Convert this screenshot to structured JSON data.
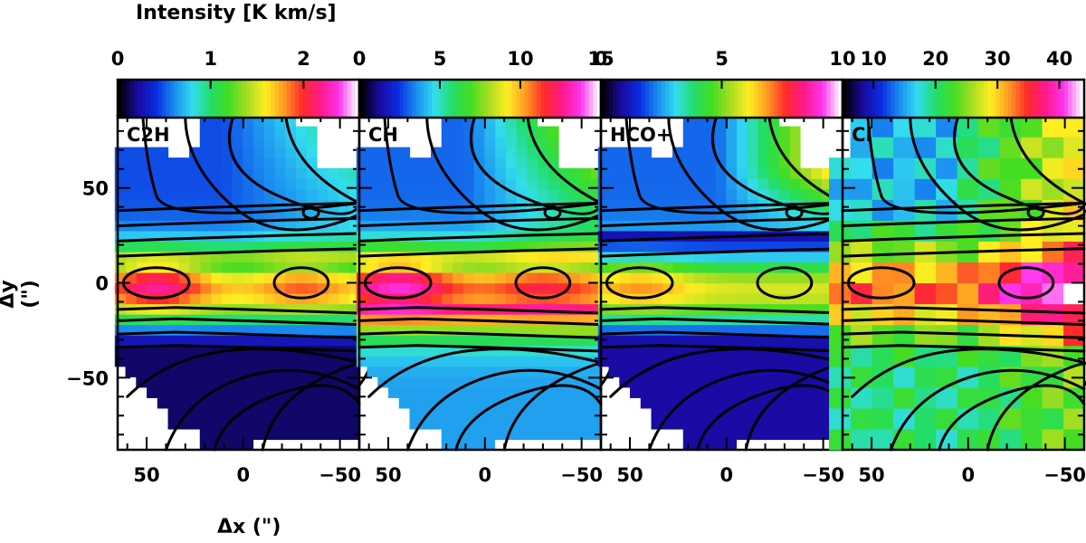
{
  "colorbar_title": "Intensity [K km/s]",
  "colormap": [
    "#000000",
    "#1a0aa0",
    "#0a2ce0",
    "#1a8cf0",
    "#33ddee",
    "#22dd66",
    "#44dd22",
    "#aadd22",
    "#ffee22",
    "#ff9922",
    "#ff2a2a",
    "#ff1a8c",
    "#ff33ee",
    "#ffffff"
  ],
  "contour_color": "#000000",
  "chart_data": {
    "type": "heatmap",
    "xlabel": "Δx (\")",
    "ylabel": "Δy (\")",
    "xlim": [
      65,
      -60
    ],
    "ylim": [
      -88,
      88
    ],
    "x_ticks": [
      "50",
      "0",
      "−50"
    ],
    "y_ticks": [
      "50",
      "0",
      "−50"
    ],
    "panels": [
      {
        "label": "C2H",
        "colorbar_range": [
          0,
          2.6
        ],
        "colorbar_ticks": [
          "0",
          "1",
          "2"
        ]
      },
      {
        "label": "CH",
        "colorbar_range": [
          0,
          15
        ],
        "colorbar_ticks": [
          "0",
          "5",
          "10",
          "15"
        ]
      },
      {
        "label": "HCO+",
        "colorbar_range": [
          0,
          10
        ],
        "colorbar_ticks": [
          "0",
          "5",
          "10"
        ]
      },
      {
        "label": "CI",
        "colorbar_range": [
          5,
          44
        ],
        "colorbar_ticks": [
          "10",
          "20",
          "30",
          "40"
        ]
      }
    ]
  }
}
